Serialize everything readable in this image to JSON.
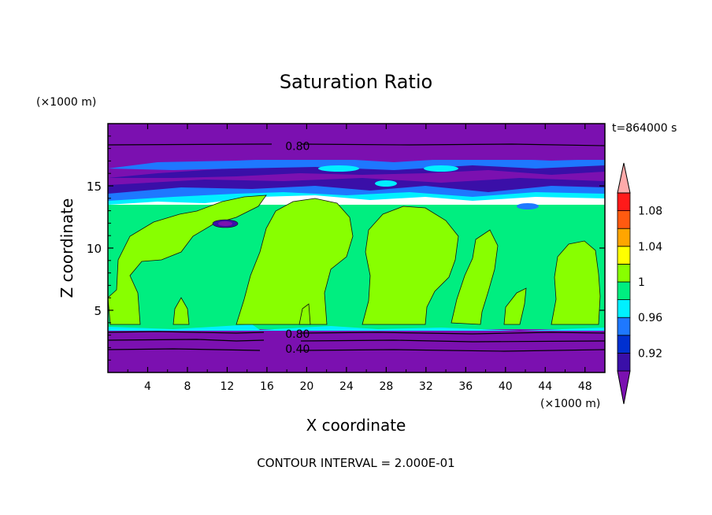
{
  "chart_data": {
    "type": "heatmap",
    "title": "Saturation Ratio",
    "xlabel": "X coordinate",
    "ylabel": "Z coordinate",
    "x_unit": "(×1000 m)",
    "y_unit": "(×1000 m)",
    "time_label": "t=864000 s",
    "footer": "CONTOUR INTERVAL = 2.000E-01",
    "xlim": [
      0,
      50
    ],
    "ylim": [
      0,
      20
    ],
    "x_ticks": [
      4,
      8,
      12,
      16,
      20,
      24,
      28,
      32,
      36,
      40,
      44,
      48
    ],
    "y_ticks": [
      5,
      10,
      15
    ],
    "contour_labels": [
      {
        "text": "0.80",
        "x": 17.5,
        "z": 18.2
      },
      {
        "text": "0.80",
        "x": 17.5,
        "z": 3.1
      },
      {
        "text": "0.40",
        "x": 17.5,
        "z": 1.9
      }
    ],
    "colorbar": {
      "levels": [
        0.9,
        0.92,
        0.94,
        0.96,
        0.98,
        1.0,
        1.02,
        1.04,
        1.06,
        1.08,
        1.1
      ],
      "labels": [
        "0.92",
        "0.96",
        "1",
        "1.04",
        "1.08"
      ],
      "colors": [
        "#7b10b0",
        "#3a0fa8",
        "#0030d0",
        "#1e78ff",
        "#00f0ff",
        "#00ee80",
        "#88ff00",
        "#ffff00",
        "#ffa500",
        "#ff5a10",
        "#ff1a1a",
        "#ffaaaa"
      ]
    }
  }
}
